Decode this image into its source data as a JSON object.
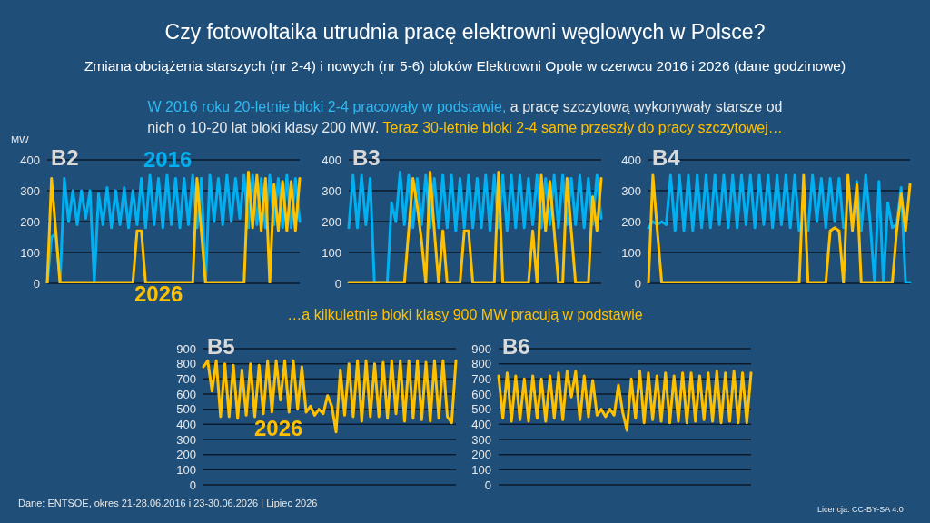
{
  "chart_data": [
    {
      "type": "other",
      "title": "Czy fotowoltaika utrudnia pracę elektrowni węglowych w Polsce?",
      "subtitle": "Zmiana obciążenia starszych (nr 2-4) i nowych (nr 5-6) bloków Elektrowni Opole w czerwcu 2016 i 2026 (dane godzinowe)",
      "annotations": [
        "W 2016 roku 20-letnie bloki 2-4 pracowały w podstawie,",
        "a pracę szczytową wykonywały starsze od nich o 10-20 lat bloki klasy 200 MW.",
        "Teraz 30-letnie bloki 2-4 same przeszły do pracy szczytowej…",
        "…a kilkuletnie bloki klasy 900 MW pracują w podstawie",
        "Dane: ENTSOE, okres 21-28.06.2016 i 23-30.06.2026   |  Lipiec 2026",
        "Licencja: CC-BY-SA 4.0"
      ]
    },
    {
      "type": "line",
      "title": "B2",
      "ylabel": "MW",
      "ylim": [
        0,
        400
      ],
      "yticks": [
        0,
        100,
        200,
        300,
        400
      ],
      "grid": "y",
      "categories": [
        null,
        null,
        null,
        null,
        null,
        null,
        null,
        null,
        null,
        null,
        null,
        null,
        null,
        null,
        null,
        null,
        null,
        null,
        null,
        null,
        null,
        null,
        null,
        null,
        null,
        null,
        null,
        null,
        null,
        null,
        null,
        null,
        null,
        null,
        null,
        null,
        null,
        null,
        null,
        null,
        null,
        null,
        null,
        null,
        null,
        null,
        null,
        null,
        null,
        null,
        null,
        null,
        null,
        null,
        null,
        null,
        null,
        null,
        null,
        null
      ],
      "series": [
        {
          "name": "2016",
          "color": "#00b0f0",
          "values": [
            0,
            150,
            160,
            0,
            340,
            200,
            300,
            190,
            300,
            210,
            300,
            0,
            290,
            190,
            310,
            180,
            300,
            190,
            310,
            180,
            300,
            190,
            340,
            180,
            350,
            190,
            340,
            180,
            350,
            190,
            340,
            180,
            340,
            190,
            350,
            180,
            340,
            0,
            350,
            200,
            340,
            190,
            350,
            200,
            340,
            210,
            350,
            180,
            350,
            190,
            340,
            180,
            350,
            190,
            340,
            180,
            350,
            180,
            340,
            200
          ]
        },
        {
          "name": "2026",
          "color": "#ffc000",
          "values": [
            0,
            340,
            170,
            0,
            0,
            0,
            0,
            0,
            0,
            0,
            0,
            0,
            0,
            0,
            0,
            0,
            0,
            0,
            0,
            0,
            0,
            170,
            170,
            0,
            0,
            0,
            0,
            0,
            0,
            0,
            0,
            0,
            0,
            0,
            0,
            340,
            170,
            0,
            0,
            0,
            0,
            0,
            0,
            0,
            0,
            0,
            0,
            360,
            180,
            350,
            170,
            340,
            0,
            320,
            170,
            330,
            170,
            330,
            170,
            340
          ]
        }
      ]
    },
    {
      "type": "line",
      "title": "B3",
      "ylim": [
        0,
        400
      ],
      "yticks": [
        0,
        100,
        200,
        300,
        400
      ],
      "grid": "y",
      "categories": [
        null,
        null,
        null,
        null,
        null,
        null,
        null,
        null,
        null,
        null,
        null,
        null,
        null,
        null,
        null,
        null,
        null,
        null,
        null,
        null,
        null,
        null,
        null,
        null,
        null,
        null,
        null,
        null,
        null,
        null,
        null,
        null,
        null,
        null,
        null,
        null,
        null,
        null,
        null,
        null,
        null,
        null,
        null,
        null,
        null,
        null,
        null,
        null,
        null,
        null,
        null,
        null,
        null,
        null,
        null,
        null,
        null,
        null,
        null,
        null
      ],
      "series": [
        {
          "color": "#00b0f0",
          "values": [
            180,
            350,
            180,
            350,
            190,
            340,
            0,
            0,
            0,
            0,
            260,
            200,
            360,
            190,
            350,
            180,
            340,
            190,
            350,
            180,
            340,
            180,
            350,
            180,
            350,
            170,
            340,
            180,
            350,
            180,
            340,
            180,
            350,
            170,
            350,
            180,
            350,
            170,
            350,
            180,
            350,
            180,
            340,
            190,
            350,
            180,
            340,
            190,
            350,
            180,
            350,
            190,
            340,
            190,
            350,
            180,
            340,
            190,
            350,
            210
          ]
        },
        {
          "color": "#ffc000",
          "values": [
            0,
            0,
            0,
            0,
            0,
            0,
            0,
            0,
            0,
            0,
            0,
            0,
            0,
            0,
            170,
            340,
            250,
            140,
            0,
            360,
            170,
            0,
            170,
            0,
            0,
            0,
            0,
            170,
            170,
            0,
            0,
            0,
            0,
            0,
            0,
            360,
            0,
            0,
            0,
            0,
            0,
            0,
            0,
            170,
            0,
            350,
            170,
            330,
            170,
            0,
            0,
            340,
            170,
            0,
            0,
            0,
            0,
            280,
            170,
            340
          ]
        }
      ]
    },
    {
      "type": "line",
      "title": "B4",
      "ylim": [
        0,
        400
      ],
      "yticks": [
        0,
        100,
        200,
        300,
        400
      ],
      "grid": "y",
      "categories": [
        null,
        null,
        null,
        null,
        null,
        null,
        null,
        null,
        null,
        null,
        null,
        null,
        null,
        null,
        null,
        null,
        null,
        null,
        null,
        null,
        null,
        null,
        null,
        null,
        null,
        null,
        null,
        null,
        null,
        null,
        null,
        null,
        null,
        null,
        null,
        null,
        null,
        null,
        null,
        null,
        null,
        null,
        null,
        null,
        null,
        null,
        null,
        null,
        null,
        null,
        null,
        null,
        null,
        null,
        null,
        null,
        null,
        null,
        null,
        null
      ],
      "series": [
        {
          "color": "#00b0f0",
          "values": [
            180,
            200,
            190,
            200,
            190,
            350,
            170,
            350,
            170,
            350,
            170,
            350,
            180,
            350,
            180,
            350,
            190,
            350,
            180,
            350,
            180,
            350,
            190,
            350,
            180,
            350,
            190,
            350,
            180,
            350,
            190,
            350,
            180,
            350,
            170,
            null,
            170,
            350,
            200,
            340,
            180,
            340,
            200,
            340,
            180,
            null,
            null,
            330,
            170,
            350,
            200,
            0,
            330,
            0,
            260,
            180,
            190,
            310,
            0,
            0
          ]
        },
        {
          "color": "#ffc000",
          "values": [
            0,
            350,
            170,
            0,
            0,
            0,
            0,
            0,
            0,
            0,
            0,
            0,
            0,
            0,
            0,
            0,
            0,
            0,
            0,
            0,
            0,
            0,
            0,
            0,
            0,
            0,
            0,
            0,
            0,
            0,
            0,
            0,
            0,
            0,
            0,
            350,
            0,
            0,
            0,
            0,
            0,
            170,
            180,
            170,
            0,
            350,
            170,
            320,
            0,
            0,
            0,
            0,
            0,
            0,
            0,
            0,
            170,
            290,
            170,
            320
          ]
        }
      ]
    },
    {
      "type": "line",
      "title": "B5",
      "ylim": [
        0,
        900
      ],
      "yticks": [
        0,
        100,
        200,
        300,
        400,
        500,
        600,
        700,
        800,
        900
      ],
      "grid": "y",
      "categories": [
        null,
        null,
        null,
        null,
        null,
        null,
        null,
        null,
        null,
        null,
        null,
        null,
        null,
        null,
        null,
        null,
        null,
        null,
        null,
        null,
        null,
        null,
        null,
        null,
        null,
        null,
        null,
        null,
        null,
        null,
        null,
        null,
        null,
        null,
        null,
        null,
        null,
        null,
        null,
        null,
        null,
        null,
        null,
        null,
        null,
        null,
        null,
        null,
        null,
        null,
        null,
        null,
        null,
        null,
        null,
        null,
        null,
        null,
        null,
        null
      ],
      "series": [
        {
          "name": "2026",
          "color": "#ffc000",
          "values": [
            780,
            820,
            620,
            820,
            450,
            800,
            450,
            790,
            440,
            760,
            460,
            800,
            450,
            790,
            470,
            820,
            480,
            820,
            560,
            820,
            480,
            820,
            500,
            780,
            480,
            520,
            460,
            500,
            470,
            590,
            520,
            350,
            760,
            460,
            800,
            450,
            820,
            420,
            820,
            450,
            800,
            450,
            810,
            440,
            820,
            470,
            820,
            420,
            820,
            440,
            820,
            430,
            810,
            420,
            820,
            440,
            820,
            450,
            410,
            820
          ]
        }
      ]
    },
    {
      "type": "line",
      "title": "B6",
      "ylim": [
        0,
        900
      ],
      "yticks": [
        0,
        100,
        200,
        300,
        400,
        500,
        600,
        700,
        800,
        900
      ],
      "grid": "y",
      "categories": [
        null,
        null,
        null,
        null,
        null,
        null,
        null,
        null,
        null,
        null,
        null,
        null,
        null,
        null,
        null,
        null,
        null,
        null,
        null,
        null,
        null,
        null,
        null,
        null,
        null,
        null,
        null,
        null,
        null,
        null,
        null,
        null,
        null,
        null,
        null,
        null,
        null,
        null,
        null,
        null,
        null,
        null,
        null,
        null,
        null,
        null,
        null,
        null,
        null,
        null,
        null,
        null,
        null,
        null,
        null,
        null,
        null,
        null,
        null,
        null
      ],
      "series": [
        {
          "color": "#ffc000",
          "values": [
            720,
            440,
            740,
            420,
            720,
            430,
            700,
            420,
            720,
            440,
            700,
            420,
            720,
            440,
            740,
            430,
            750,
            580,
            750,
            430,
            720,
            450,
            690,
            460,
            500,
            450,
            500,
            460,
            660,
            480,
            360,
            700,
            440,
            750,
            410,
            740,
            430,
            720,
            420,
            740,
            410,
            720,
            420,
            740,
            410,
            740,
            420,
            720,
            430,
            740,
            420,
            750,
            410,
            740,
            420,
            750,
            410,
            740,
            410,
            740
          ]
        }
      ]
    }
  ]
}
